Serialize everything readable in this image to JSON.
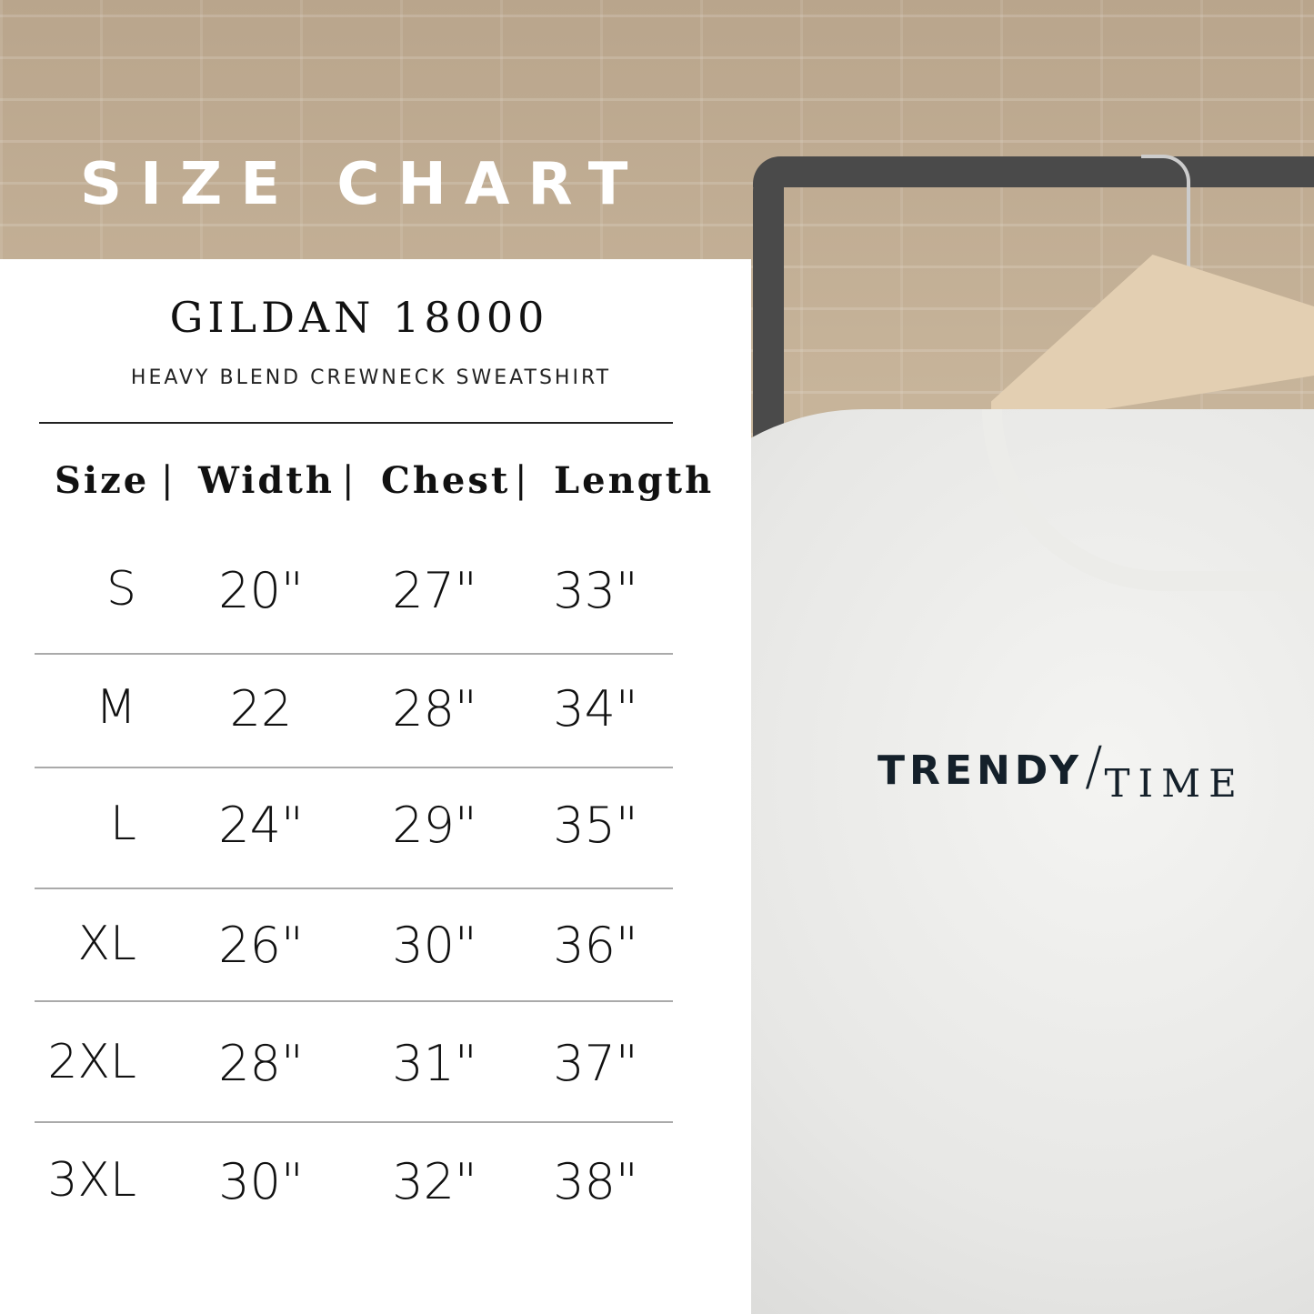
{
  "banner_title": "SIZE CHART",
  "product": {
    "model": "GILDAN 18000",
    "description": "HEAVY BLEND CREWNECK SWEATSHIRT"
  },
  "table": {
    "headers": [
      "Size",
      "|",
      "Width",
      "|",
      "Chest",
      "|",
      "Length"
    ],
    "rows": [
      {
        "size": "S",
        "width": "20\"",
        "chest": "27\"",
        "length": "33\""
      },
      {
        "size": "M",
        "width": "22",
        "chest": "28\"",
        "length": "34\""
      },
      {
        "size": "L",
        "width": "24\"",
        "chest": "29\"",
        "length": "35\""
      },
      {
        "size": "XL",
        "width": "26\"",
        "chest": "30\"",
        "length": "36\""
      },
      {
        "size": "2XL",
        "width": "28\"",
        "chest": "31\"",
        "length": "37\""
      },
      {
        "size": "3XL",
        "width": "30\"",
        "chest": "32\"",
        "length": "38\""
      }
    ]
  },
  "shirt_print": {
    "part1": "TRENDY",
    "separator": "/",
    "part2": "TIME"
  },
  "colors": {
    "text": "#111111",
    "print": "#14202a",
    "panel": "#ffffff"
  }
}
